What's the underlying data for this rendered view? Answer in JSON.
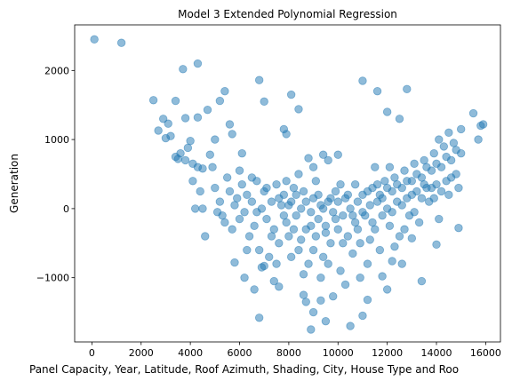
{
  "chart_data": {
    "type": "scatter",
    "title": "Model 3 Extended Polynomial Regression",
    "x_label": "Panel Capacity, Year, Latitude, Roof Azimuth, Shading, City, House Type and Roo",
    "y_label": "Generation",
    "color": "#1f77b4",
    "xlim": [
      -700,
      16600
    ],
    "ylim": [
      -1930,
      2660
    ],
    "xticks": [
      0,
      2000,
      4000,
      6000,
      8000,
      10000,
      12000,
      14000,
      16000
    ],
    "yticks": [
      {
        "value": -1000,
        "label": "−1000"
      },
      0,
      1000,
      2000
    ],
    "x": [
      100,
      1200,
      2500,
      3400,
      3700,
      4300,
      2700,
      2900,
      3100,
      3000,
      3200,
      3400,
      3500,
      3800,
      4300,
      3900,
      4000,
      4100,
      4300,
      4500,
      4700,
      4800,
      5200,
      5400,
      5600,
      5700,
      5000,
      4200,
      4500,
      4600,
      5800,
      6800,
      6800,
      7000,
      8100,
      8400,
      7800,
      7900,
      8800,
      9000,
      9400,
      9600,
      10000,
      11000,
      11600,
      12000,
      12500,
      12800,
      15000,
      15500,
      15700,
      15800,
      15900,
      14900,
      14000,
      13400,
      13000,
      11200,
      11000,
      10500,
      9500,
      9000,
      8900,
      8700,
      8600,
      9300,
      9800,
      12000,
      11800,
      12600,
      12200,
      6200,
      6600,
      7000,
      7400,
      7600,
      5000,
      5200,
      5300,
      5500,
      5600,
      5700,
      5800,
      6000,
      6100,
      6200,
      6300,
      6400,
      6500,
      6600,
      6700,
      6800,
      6900,
      7000,
      7100,
      7200,
      7300,
      7400,
      7500,
      7600,
      7700,
      7800,
      7900,
      8000,
      8100,
      8200,
      8300,
      8400,
      8500,
      8600,
      8700,
      8800,
      8900,
      9000,
      9100,
      9200,
      9300,
      9400,
      9500,
      9600,
      9700,
      9800,
      9900,
      10000,
      10100,
      10200,
      10300,
      10400,
      10500,
      10600,
      10700,
      10800,
      10900,
      11000,
      11100,
      11200,
      11300,
      11400,
      11500,
      11600,
      11700,
      11800,
      11900,
      12000,
      12100,
      12200,
      12300,
      12400,
      12500,
      12600,
      12700,
      12800,
      12900,
      13000,
      13100,
      13200,
      13300,
      13400,
      13500,
      13600,
      13700,
      13800,
      13900,
      14000,
      14100,
      14200,
      14300,
      14400,
      14500,
      14600,
      14700,
      14800,
      14900,
      15000,
      5100,
      5400,
      5900,
      6000,
      6300,
      6500,
      6900,
      7100,
      7300,
      7600,
      7800,
      8000,
      8200,
      8300,
      8500,
      8700,
      8900,
      9000,
      9200,
      9400,
      9500,
      9700,
      9900,
      10000,
      10200,
      10400,
      10600,
      10800,
      11000,
      11200,
      11400,
      11600,
      11800,
      12000,
      12200,
      12400,
      12600,
      12800,
      13000,
      13200,
      13400,
      13600,
      13800,
      14000,
      14200,
      14400,
      14600,
      14800,
      6100,
      6700,
      7500,
      7900,
      8100,
      8400,
      8600,
      9100,
      9300,
      9600,
      10100,
      10300,
      10700,
      10900,
      11300,
      11500,
      11700,
      12100,
      12300,
      12700,
      13100,
      13500,
      13900,
      14100,
      14500,
      4900,
      4400,
      4100,
      3800,
      3600
    ],
    "values": [
      2450,
      2400,
      1570,
      1560,
      2020,
      2100,
      1130,
      1300,
      1230,
      1020,
      1050,
      750,
      720,
      1310,
      1320,
      880,
      980,
      650,
      600,
      580,
      1430,
      780,
      1560,
      1700,
      1220,
      1080,
      1000,
      0,
      0,
      -400,
      -780,
      -1580,
      1860,
      1550,
      1650,
      1440,
      1150,
      1080,
      730,
      600,
      780,
      700,
      780,
      1850,
      1700,
      1400,
      1300,
      1730,
      1150,
      1380,
      1000,
      1200,
      1220,
      -280,
      -520,
      -1050,
      -430,
      -1320,
      -1550,
      -1700,
      -1630,
      -1500,
      -1750,
      -1350,
      -1250,
      -1330,
      -1270,
      -1170,
      -980,
      -800,
      -760,
      -1000,
      -1170,
      -830,
      -1050,
      -1130,
      300,
      100,
      -100,
      450,
      250,
      -300,
      50,
      550,
      350,
      -50,
      200,
      -400,
      100,
      -250,
      400,
      -600,
      0,
      250,
      -150,
      -700,
      100,
      -300,
      350,
      -500,
      50,
      200,
      -200,
      -400,
      100,
      300,
      -100,
      -600,
      0,
      250,
      -300,
      -800,
      -50,
      150,
      -400,
      -150,
      50,
      -700,
      -250,
      100,
      -500,
      -50,
      250,
      -300,
      -900,
      -100,
      150,
      -400,
      0,
      -650,
      -200,
      100,
      -500,
      200,
      -100,
      -800,
      50,
      300,
      -300,
      100,
      -600,
      150,
      400,
      0,
      -250,
      250,
      450,
      100,
      -400,
      300,
      550,
      150,
      -100,
      400,
      650,
      250,
      -200,
      450,
      700,
      300,
      100,
      550,
      800,
      350,
      -150,
      600,
      900,
      400,
      200,
      700,
      950,
      500,
      300,
      800,
      -50,
      -200,
      150,
      -150,
      -600,
      450,
      -850,
      300,
      -400,
      150,
      -100,
      50,
      -300,
      200,
      -450,
      100,
      -250,
      -600,
      200,
      0,
      -350,
      150,
      -150,
      100,
      -500,
      200,
      -100,
      -300,
      -50,
      250,
      -200,
      350,
      -100,
      300,
      -50,
      350,
      50,
      400,
      200,
      500,
      150,
      600,
      300,
      650,
      250,
      750,
      450,
      850,
      800,
      -50,
      -800,
      400,
      -700,
      500,
      -950,
      400,
      -1000,
      -800,
      350,
      -1100,
      350,
      -1000,
      -450,
      600,
      200,
      600,
      -550,
      -300,
      -50,
      350,
      150,
      1000,
      1100,
      600,
      250,
      400,
      700,
      800
    ]
  }
}
